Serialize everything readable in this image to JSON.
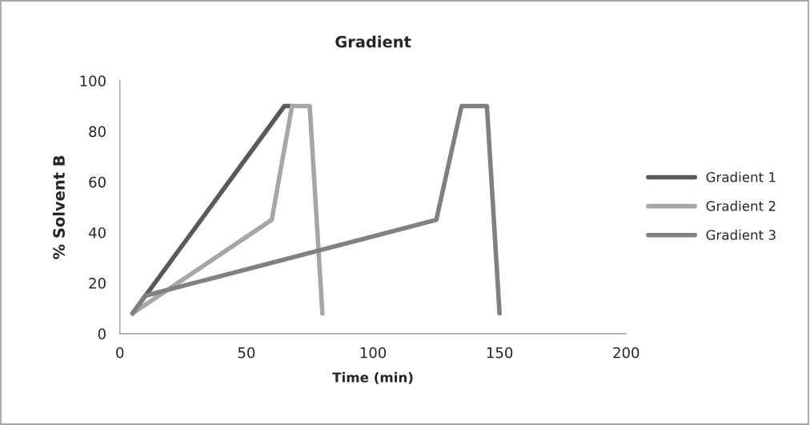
{
  "chart_data": {
    "type": "line",
    "title": "Gradient",
    "xlabel": "Time (min)",
    "ylabel": "% Solvent B",
    "series": [
      {
        "name": "Gradient 1",
        "color": "#595959",
        "x": [
          5,
          65,
          68
        ],
        "values": [
          8,
          90,
          90
        ]
      },
      {
        "name": "Gradient 2",
        "color": "#a6a6a6",
        "x": [
          5,
          60,
          68,
          75,
          80
        ],
        "values": [
          8,
          45,
          90,
          90,
          8
        ]
      },
      {
        "name": "Gradient 3",
        "color": "#808080",
        "x": [
          5,
          10,
          125,
          135,
          145,
          150
        ],
        "values": [
          8,
          15,
          45,
          90,
          90,
          8
        ]
      }
    ],
    "xlim": [
      0,
      200
    ],
    "xticks": [
      0,
      50,
      100,
      150,
      200
    ],
    "ylim": [
      0,
      100
    ],
    "yticks": [
      0,
      20,
      40,
      60,
      80,
      100
    ],
    "grid": false,
    "legend": "right",
    "marker": "none",
    "line_style": "solid"
  }
}
